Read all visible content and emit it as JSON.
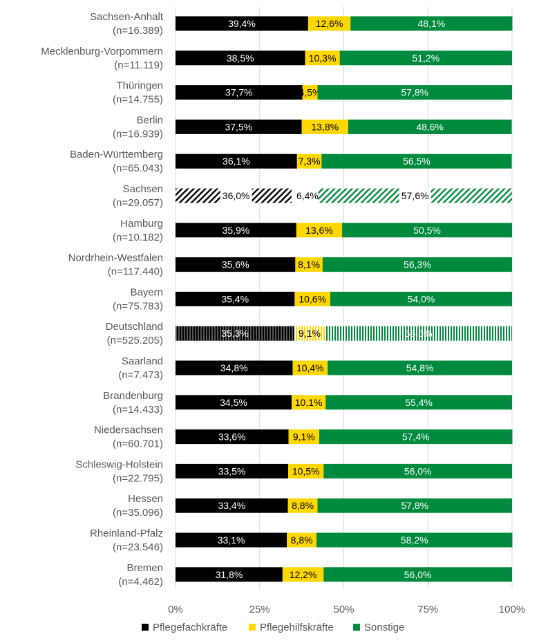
{
  "chart_data": {
    "type": "bar",
    "orientation": "horizontal",
    "stacked": "percent",
    "categories": [
      "Sachsen-Anhalt|(n=16.389)",
      "Mecklenburg-Vorpommern|(n=11.119)",
      "Thüringen|(n=14.755)",
      "Berlin|(n=16.939)",
      "Baden-Württemberg|(n=65.043)",
      "Sachsen|(n=29.057)",
      "Hamburg|(n=10.182)",
      "Nordrhein-Westfalen|(n=117.440)",
      "Bayern|(n=75.783)",
      "Deutschland|(n=525.205)",
      "Saarland|(n=7.473)",
      "Brandenburg|(n=14.433)",
      "Niedersachsen|(n=60.701)",
      "Schleswig-Holstein|(n=22.795)",
      "Hessen|(n=35.096)",
      "Rheinland-Pfalz|(n=23.546)",
      "Bremen|(n=4.462)"
    ],
    "series": [
      {
        "name": "Pflegefachkräfte",
        "color": "#000000",
        "values": [
          39.4,
          38.5,
          37.7,
          37.5,
          36.1,
          36.0,
          35.9,
          35.6,
          35.4,
          35.3,
          34.8,
          34.5,
          33.6,
          33.5,
          33.4,
          33.1,
          31.8
        ],
        "labels": [
          "39,4%",
          "38,5%",
          "37,7%",
          "37,5%",
          "36,1%",
          "36,0%",
          "35,9%",
          "35,6%",
          "35,4%",
          "35,3%",
          "34,8%",
          "34,5%",
          "33,6%",
          "33,5%",
          "33,4%",
          "33,1%",
          "31,8%"
        ]
      },
      {
        "name": "Pflegehilfskräfte",
        "color": "#FFD700",
        "values": [
          12.6,
          10.3,
          4.5,
          13.8,
          7.3,
          6.4,
          13.6,
          8.1,
          10.6,
          9.1,
          10.4,
          10.1,
          9.1,
          10.5,
          8.8,
          8.8,
          12.2
        ],
        "labels": [
          "12,6%",
          "10,3%",
          "4,5%",
          "13,8%",
          "7,3%",
          "6,4%",
          "13,6%",
          "8,1%",
          "10,6%",
          "9,1%",
          "10,4%",
          "10,1%",
          "9,1%",
          "10,5%",
          "8,8%",
          "8,8%",
          "12,2%"
        ]
      },
      {
        "name": "Sonstige",
        "color": "#008A3E",
        "values": [
          48.1,
          51.2,
          57.8,
          48.6,
          56.5,
          57.6,
          50.5,
          56.3,
          54.0,
          55.6,
          54.8,
          55.4,
          57.4,
          56.0,
          57.8,
          58.2,
          56.0
        ],
        "labels": [
          "48,1%",
          "51,2%",
          "57,8%",
          "48,6%",
          "56,5%",
          "57,6%",
          "50,5%",
          "56,3%",
          "54,0%",
          "55,6%",
          "54,8%",
          "55,4%",
          "57,4%",
          "56,0%",
          "57,8%",
          "58,2%",
          "56,0%"
        ]
      }
    ],
    "special_patterns": {
      "Sachsen": "diagonal-hatch",
      "Deutschland": "vertical-stripes"
    },
    "xaxis": {
      "ticks": [
        0,
        25,
        50,
        75,
        100
      ],
      "tick_labels": [
        "0%",
        "25%",
        "50%",
        "75%",
        "100%"
      ],
      "range": [
        0,
        100
      ]
    },
    "grid": "vertical",
    "legend": "bottom",
    "title": "",
    "xlabel": "",
    "ylabel": ""
  }
}
